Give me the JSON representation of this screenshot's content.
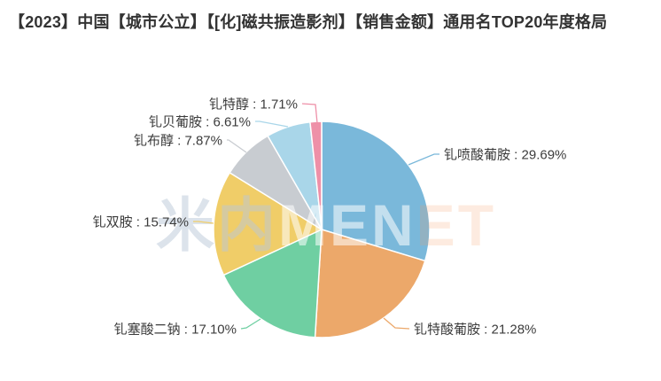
{
  "chart_data": {
    "type": "pie",
    "title": "【2023】中国【城市公立】【[化]磁共振造影剂】【销售金额】通用名TOP20年度格局",
    "unit": "%",
    "direction": "clockwise",
    "start_angle": "12-oclock",
    "legend": "none",
    "label_format": "{name} : {value}%",
    "slices": [
      {
        "name": "钆喷酸葡胺",
        "value": 29.69,
        "color": "#7ab8da"
      },
      {
        "name": "钆特酸葡胺",
        "value": 21.28,
        "color": "#eca86a"
      },
      {
        "name": "钆塞酸二钠",
        "value": 17.1,
        "color": "#6fcfa2"
      },
      {
        "name": "钆双胺",
        "value": 15.74,
        "color": "#f0cd68"
      },
      {
        "name": "钆布醇",
        "value": 7.87,
        "color": "#c8ccd1"
      },
      {
        "name": "钆贝葡胺",
        "value": 6.61,
        "color": "#a9d6e9"
      },
      {
        "name": "钆特醇",
        "value": 1.71,
        "color": "#ee90a8"
      }
    ]
  },
  "watermark": {
    "part_cjk": "米内",
    "part_mid": "MEN",
    "part_tail": "ET"
  },
  "colors": {
    "title_text": "#333333",
    "label_text": "#3c3c3c",
    "background": "#ffffff"
  }
}
